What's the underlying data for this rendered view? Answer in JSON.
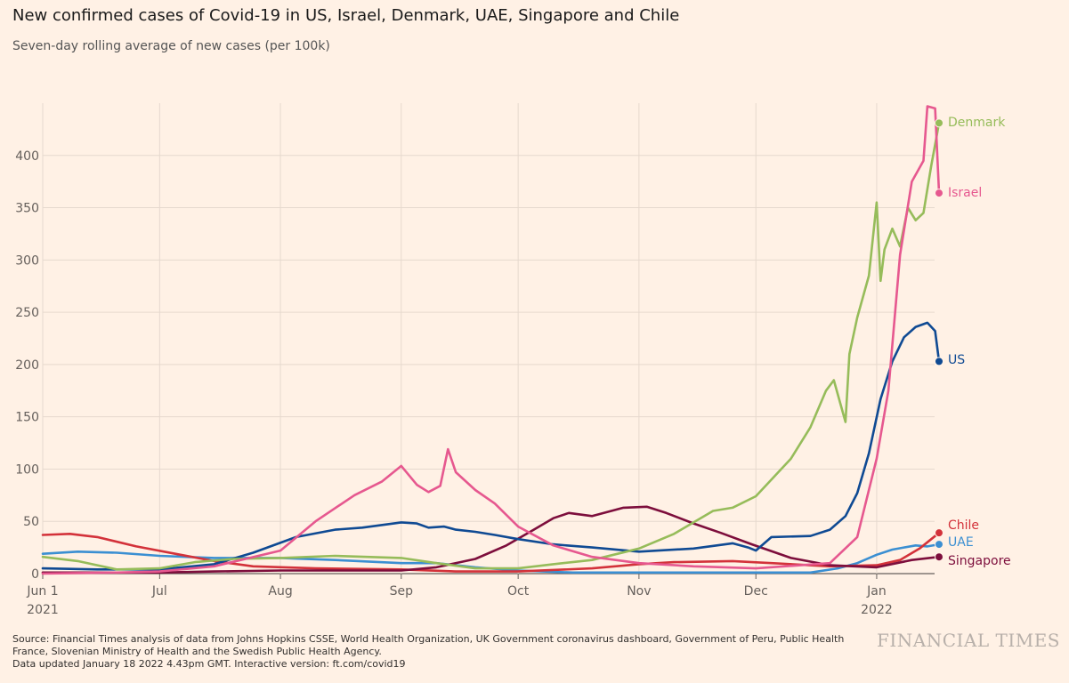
{
  "header": {
    "title": "New confirmed cases of Covid-19 in US, Israel, Denmark, UAE, Singapore and Chile",
    "subtitle": "Seven-day rolling average of new cases (per 100k)"
  },
  "footer": {
    "source_line1": "Source: Financial Times analysis of data from Johns Hopkins CSSE, World Health Organization, UK Government coronavirus dashboard, Government of Peru, Public Health France, Slovenian Ministry of Health and the Swedish Public Health Agency.",
    "source_line2": "Data updated January 18 2022 4.43pm GMT. Interactive version: ft.com/covid19",
    "logo": "FINANCIAL TIMES"
  },
  "chart_data": {
    "type": "line",
    "x_start": "2021-06-01",
    "x_end": "2022-01-17",
    "xticks": [
      {
        "date": "2021-06-01",
        "label": "Jun 1",
        "sublabel": "2021"
      },
      {
        "date": "2021-07-01",
        "label": "Jul",
        "sublabel": ""
      },
      {
        "date": "2021-08-01",
        "label": "Aug",
        "sublabel": ""
      },
      {
        "date": "2021-09-01",
        "label": "Sep",
        "sublabel": ""
      },
      {
        "date": "2021-10-01",
        "label": "Oct",
        "sublabel": ""
      },
      {
        "date": "2021-11-01",
        "label": "Nov",
        "sublabel": ""
      },
      {
        "date": "2021-12-01",
        "label": "Dec",
        "sublabel": ""
      },
      {
        "date": "2022-01-01",
        "label": "Jan",
        "sublabel": "2022"
      }
    ],
    "yticks": [
      0,
      50,
      100,
      150,
      200,
      250,
      300,
      350,
      400
    ],
    "ylim": [
      0,
      450
    ],
    "grid": true,
    "legend": "end-labels",
    "series": [
      {
        "name": "UAE",
        "color": "#3b8fd2",
        "points": [
          [
            "2021-06-01",
            19
          ],
          [
            "2021-06-10",
            21
          ],
          [
            "2021-06-20",
            20
          ],
          [
            "2021-07-01",
            17
          ],
          [
            "2021-07-15",
            15
          ],
          [
            "2021-08-01",
            15
          ],
          [
            "2021-08-15",
            13
          ],
          [
            "2021-09-01",
            10
          ],
          [
            "2021-09-10",
            10
          ],
          [
            "2021-09-20",
            6
          ],
          [
            "2021-10-01",
            3
          ],
          [
            "2021-10-15",
            1
          ],
          [
            "2021-11-01",
            1
          ],
          [
            "2021-12-01",
            1
          ],
          [
            "2021-12-15",
            1
          ],
          [
            "2021-12-22",
            5
          ],
          [
            "2021-12-27",
            10
          ],
          [
            "2022-01-01",
            18
          ],
          [
            "2022-01-05",
            23
          ],
          [
            "2022-01-08",
            25
          ],
          [
            "2022-01-11",
            27
          ],
          [
            "2022-01-14",
            26
          ],
          [
            "2022-01-17",
            28
          ]
        ]
      },
      {
        "name": "Chile",
        "color": "#d3323a",
        "points": [
          [
            "2021-06-01",
            37
          ],
          [
            "2021-06-08",
            38
          ],
          [
            "2021-06-15",
            35
          ],
          [
            "2021-06-25",
            26
          ],
          [
            "2021-07-05",
            19
          ],
          [
            "2021-07-15",
            12
          ],
          [
            "2021-07-25",
            7
          ],
          [
            "2021-08-10",
            5
          ],
          [
            "2021-09-01",
            4
          ],
          [
            "2021-09-15",
            2
          ],
          [
            "2021-10-01",
            2
          ],
          [
            "2021-10-20",
            5
          ],
          [
            "2021-11-01",
            9
          ],
          [
            "2021-11-10",
            11
          ],
          [
            "2021-11-25",
            12
          ],
          [
            "2021-12-05",
            10
          ],
          [
            "2021-12-20",
            7
          ],
          [
            "2022-01-01",
            8
          ],
          [
            "2022-01-07",
            13
          ],
          [
            "2022-01-12",
            24
          ],
          [
            "2022-01-17",
            39
          ]
        ]
      },
      {
        "name": "Singapore",
        "color": "#7d0e3c",
        "points": [
          [
            "2021-06-01",
            1
          ],
          [
            "2021-07-01",
            1
          ],
          [
            "2021-07-15",
            2
          ],
          [
            "2021-08-01",
            3
          ],
          [
            "2021-08-15",
            3
          ],
          [
            "2021-09-01",
            3
          ],
          [
            "2021-09-10",
            6
          ],
          [
            "2021-09-20",
            14
          ],
          [
            "2021-09-28",
            27
          ],
          [
            "2021-10-05",
            42
          ],
          [
            "2021-10-10",
            53
          ],
          [
            "2021-10-14",
            58
          ],
          [
            "2021-10-20",
            55
          ],
          [
            "2021-10-28",
            63
          ],
          [
            "2021-11-03",
            64
          ],
          [
            "2021-11-08",
            58
          ],
          [
            "2021-11-15",
            48
          ],
          [
            "2021-11-22",
            39
          ],
          [
            "2021-11-30",
            28
          ],
          [
            "2021-12-10",
            15
          ],
          [
            "2021-12-20",
            8
          ],
          [
            "2022-01-01",
            6
          ],
          [
            "2022-01-10",
            13
          ],
          [
            "2022-01-17",
            16
          ]
        ]
      },
      {
        "name": "US",
        "color": "#0f4a93",
        "points": [
          [
            "2021-06-01",
            5
          ],
          [
            "2021-06-15",
            4
          ],
          [
            "2021-07-01",
            4
          ],
          [
            "2021-07-15",
            9
          ],
          [
            "2021-07-25",
            20
          ],
          [
            "2021-08-05",
            35
          ],
          [
            "2021-08-15",
            42
          ],
          [
            "2021-08-22",
            44
          ],
          [
            "2021-09-01",
            49
          ],
          [
            "2021-09-05",
            48
          ],
          [
            "2021-09-08",
            44
          ],
          [
            "2021-09-12",
            45
          ],
          [
            "2021-09-15",
            42
          ],
          [
            "2021-09-20",
            40
          ],
          [
            "2021-09-25",
            37
          ],
          [
            "2021-10-01",
            33
          ],
          [
            "2021-10-10",
            28
          ],
          [
            "2021-10-20",
            25
          ],
          [
            "2021-11-01",
            21
          ],
          [
            "2021-11-15",
            24
          ],
          [
            "2021-11-25",
            29
          ],
          [
            "2021-11-29",
            25
          ],
          [
            "2021-12-01",
            22
          ],
          [
            "2021-12-05",
            35
          ],
          [
            "2021-12-15",
            36
          ],
          [
            "2021-12-20",
            42
          ],
          [
            "2021-12-24",
            55
          ],
          [
            "2021-12-27",
            77
          ],
          [
            "2021-12-30",
            115
          ],
          [
            "2022-01-02",
            167
          ],
          [
            "2022-01-05",
            203
          ],
          [
            "2022-01-08",
            226
          ],
          [
            "2022-01-11",
            236
          ],
          [
            "2022-01-14",
            240
          ],
          [
            "2022-01-16",
            232
          ],
          [
            "2022-01-17",
            203
          ]
        ]
      },
      {
        "name": "Denmark",
        "color": "#96bc5a",
        "points": [
          [
            "2021-06-01",
            16
          ],
          [
            "2021-06-10",
            12
          ],
          [
            "2021-06-20",
            4
          ],
          [
            "2021-07-01",
            5
          ],
          [
            "2021-07-10",
            11
          ],
          [
            "2021-07-20",
            14
          ],
          [
            "2021-08-01",
            15
          ],
          [
            "2021-08-15",
            17
          ],
          [
            "2021-09-01",
            15
          ],
          [
            "2021-09-10",
            10
          ],
          [
            "2021-09-20",
            5
          ],
          [
            "2021-10-01",
            5
          ],
          [
            "2021-10-10",
            9
          ],
          [
            "2021-10-20",
            13
          ],
          [
            "2021-11-01",
            24
          ],
          [
            "2021-11-10",
            38
          ],
          [
            "2021-11-20",
            60
          ],
          [
            "2021-11-25",
            63
          ],
          [
            "2021-12-01",
            74
          ],
          [
            "2021-12-05",
            90
          ],
          [
            "2021-12-10",
            110
          ],
          [
            "2021-12-15",
            140
          ],
          [
            "2021-12-19",
            175
          ],
          [
            "2021-12-21",
            185
          ],
          [
            "2021-12-24",
            145
          ],
          [
            "2021-12-25",
            210
          ],
          [
            "2021-12-27",
            245
          ],
          [
            "2021-12-30",
            285
          ],
          [
            "2022-01-01",
            355
          ],
          [
            "2022-01-02",
            280
          ],
          [
            "2022-01-03",
            310
          ],
          [
            "2022-01-05",
            330
          ],
          [
            "2022-01-07",
            313
          ],
          [
            "2022-01-09",
            350
          ],
          [
            "2022-01-11",
            338
          ],
          [
            "2022-01-13",
            345
          ],
          [
            "2022-01-15",
            390
          ],
          [
            "2022-01-17",
            431
          ]
        ]
      },
      {
        "name": "Israel",
        "color": "#e6588f",
        "points": [
          [
            "2021-06-01",
            0
          ],
          [
            "2021-06-20",
            1
          ],
          [
            "2021-07-01",
            2
          ],
          [
            "2021-07-15",
            7
          ],
          [
            "2021-08-01",
            22
          ],
          [
            "2021-08-10",
            50
          ],
          [
            "2021-08-20",
            75
          ],
          [
            "2021-08-27",
            88
          ],
          [
            "2021-09-01",
            103
          ],
          [
            "2021-09-05",
            85
          ],
          [
            "2021-09-08",
            78
          ],
          [
            "2021-09-11",
            84
          ],
          [
            "2021-09-13",
            119
          ],
          [
            "2021-09-15",
            97
          ],
          [
            "2021-09-20",
            80
          ],
          [
            "2021-09-25",
            67
          ],
          [
            "2021-10-01",
            45
          ],
          [
            "2021-10-10",
            27
          ],
          [
            "2021-10-20",
            16
          ],
          [
            "2021-11-01",
            10
          ],
          [
            "2021-11-15",
            7
          ],
          [
            "2021-12-01",
            5
          ],
          [
            "2021-12-20",
            10
          ],
          [
            "2021-12-27",
            35
          ],
          [
            "2022-01-01",
            110
          ],
          [
            "2022-01-04",
            175
          ],
          [
            "2022-01-07",
            305
          ],
          [
            "2022-01-10",
            375
          ],
          [
            "2022-01-13",
            395
          ],
          [
            "2022-01-14",
            447
          ],
          [
            "2022-01-16",
            445
          ],
          [
            "2022-01-17",
            364
          ]
        ]
      }
    ]
  }
}
